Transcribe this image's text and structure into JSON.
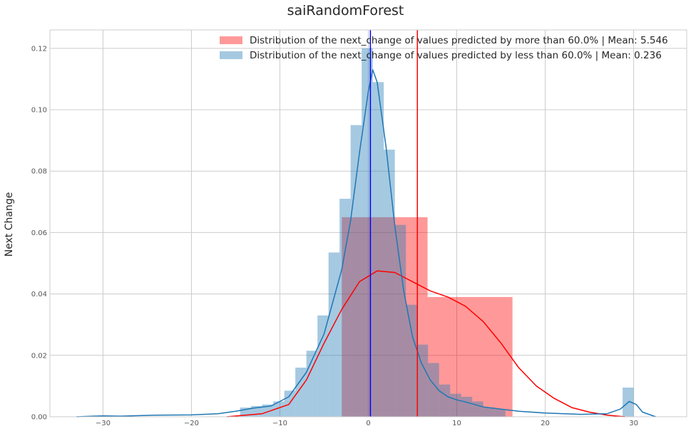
{
  "chart_data": {
    "type": "histogram-kde",
    "title": "saiRandomForest",
    "ylabel": "Next Change",
    "xlim": [
      -36,
      36
    ],
    "ylim": [
      0,
      0.126
    ],
    "x_ticks": [
      -30,
      -20,
      -10,
      0,
      10,
      20,
      30
    ],
    "x_tick_labels": [
      "−30",
      "−20",
      "−10",
      "0",
      "10",
      "20",
      "30"
    ],
    "y_ticks": [
      0.0,
      0.02,
      0.04,
      0.06,
      0.08,
      0.1,
      0.12
    ],
    "y_tick_labels": [
      "0.00",
      "0.02",
      "0.04",
      "0.06",
      "0.08",
      "0.10",
      "0.12"
    ],
    "grid": true,
    "legend_position": "top-right",
    "series": [
      {
        "name": "Distribution of the next_change of values predicted by more than 60.0% | Mean: 5.546",
        "color": "#ff0000",
        "bar_opacity": 0.4,
        "mean": 5.546,
        "bins": [
          {
            "x0": -3.0,
            "x1": 6.7,
            "y": 0.065
          },
          {
            "x0": 6.7,
            "x1": 16.3,
            "y": 0.039
          }
        ],
        "kde": [
          [
            -16,
            0.0
          ],
          [
            -12,
            0.001
          ],
          [
            -9,
            0.004
          ],
          [
            -7,
            0.012
          ],
          [
            -5,
            0.024
          ],
          [
            -3,
            0.035
          ],
          [
            -1,
            0.044
          ],
          [
            1,
            0.0475
          ],
          [
            3,
            0.047
          ],
          [
            5,
            0.044
          ],
          [
            7,
            0.041
          ],
          [
            9,
            0.039
          ],
          [
            11,
            0.036
          ],
          [
            13,
            0.031
          ],
          [
            15,
            0.024
          ],
          [
            17,
            0.016
          ],
          [
            19,
            0.01
          ],
          [
            21,
            0.006
          ],
          [
            23,
            0.003
          ],
          [
            25,
            0.0015
          ],
          [
            27,
            0.0005
          ],
          [
            29,
            0.0
          ]
        ]
      },
      {
        "name": "Distribution of the next_change of values predicted by less than 60.0% | Mean: 0.236",
        "color": "#1f77b4",
        "bar_opacity": 0.4,
        "mean": 0.236,
        "bins": [
          {
            "x0": -14.5,
            "x1": -13.25,
            "y": 0.003
          },
          {
            "x0": -13.25,
            "x1": -12.0,
            "y": 0.0035
          },
          {
            "x0": -12.0,
            "x1": -10.75,
            "y": 0.004
          },
          {
            "x0": -10.75,
            "x1": -9.5,
            "y": 0.005
          },
          {
            "x0": -9.5,
            "x1": -8.25,
            "y": 0.0085
          },
          {
            "x0": -8.25,
            "x1": -7.0,
            "y": 0.016
          },
          {
            "x0": -7.0,
            "x1": -5.75,
            "y": 0.0215
          },
          {
            "x0": -5.75,
            "x1": -4.5,
            "y": 0.033
          },
          {
            "x0": -4.5,
            "x1": -3.25,
            "y": 0.0535
          },
          {
            "x0": -3.25,
            "x1": -2.0,
            "y": 0.071
          },
          {
            "x0": -2.0,
            "x1": -0.75,
            "y": 0.095
          },
          {
            "x0": -0.75,
            "x1": 0.5,
            "y": 0.12
          },
          {
            "x0": 0.5,
            "x1": 1.75,
            "y": 0.109
          },
          {
            "x0": 1.75,
            "x1": 3.0,
            "y": 0.087
          },
          {
            "x0": 3.0,
            "x1": 4.25,
            "y": 0.0625
          },
          {
            "x0": 4.25,
            "x1": 5.5,
            "y": 0.0365
          },
          {
            "x0": 5.5,
            "x1": 6.75,
            "y": 0.0235
          },
          {
            "x0": 6.75,
            "x1": 8.0,
            "y": 0.0175
          },
          {
            "x0": 8.0,
            "x1": 9.25,
            "y": 0.0105
          },
          {
            "x0": 9.25,
            "x1": 10.5,
            "y": 0.0075
          },
          {
            "x0": 10.5,
            "x1": 11.75,
            "y": 0.0065
          },
          {
            "x0": 11.75,
            "x1": 13.0,
            "y": 0.005
          },
          {
            "x0": 13.0,
            "x1": 14.25,
            "y": 0.003
          },
          {
            "x0": 14.25,
            "x1": 15.5,
            "y": 0.0025
          },
          {
            "x0": 28.75,
            "x1": 30.0,
            "y": 0.0095
          }
        ],
        "kde": [
          [
            -33,
            0.0
          ],
          [
            -30,
            0.0003
          ],
          [
            -28,
            0.0002
          ],
          [
            -24,
            0.0005
          ],
          [
            -20,
            0.0006
          ],
          [
            -17,
            0.001
          ],
          [
            -15,
            0.0018
          ],
          [
            -13,
            0.0028
          ],
          [
            -11,
            0.0035
          ],
          [
            -9,
            0.0065
          ],
          [
            -7,
            0.0145
          ],
          [
            -5,
            0.027
          ],
          [
            -3,
            0.048
          ],
          [
            -2,
            0.064
          ],
          [
            -1,
            0.086
          ],
          [
            0,
            0.106
          ],
          [
            0.5,
            0.113
          ],
          [
            1,
            0.109
          ],
          [
            2,
            0.088
          ],
          [
            3,
            0.062
          ],
          [
            4,
            0.041
          ],
          [
            5,
            0.026
          ],
          [
            6,
            0.0175
          ],
          [
            7,
            0.012
          ],
          [
            8,
            0.0085
          ],
          [
            9,
            0.0065
          ],
          [
            10,
            0.0055
          ],
          [
            11,
            0.0048
          ],
          [
            13,
            0.0032
          ],
          [
            15,
            0.0025
          ],
          [
            17,
            0.0018
          ],
          [
            20,
            0.0012
          ],
          [
            24,
            0.0008
          ],
          [
            27,
            0.001
          ],
          [
            28.5,
            0.0025
          ],
          [
            29.5,
            0.005
          ],
          [
            30.3,
            0.004
          ],
          [
            31,
            0.0015
          ],
          [
            32.5,
            0.0
          ]
        ]
      }
    ]
  }
}
